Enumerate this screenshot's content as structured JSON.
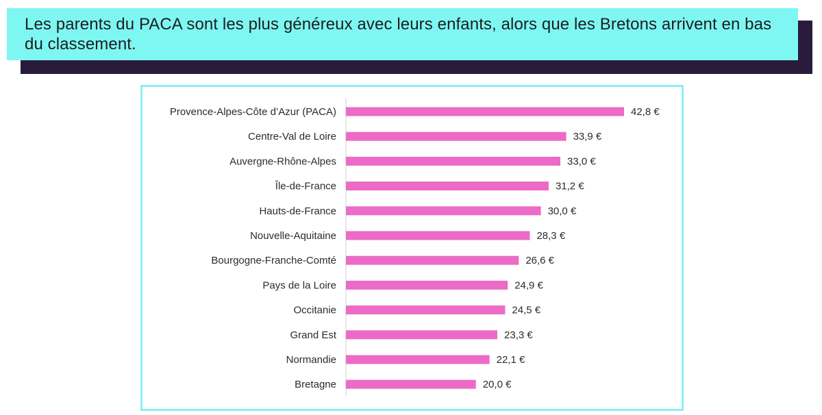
{
  "title": "Les parents du PACA sont les plus généreux avec leurs enfants, alors que les Bretons arrivent en bas du classement.",
  "colors": {
    "bar": "#ec6bc6",
    "title_bg": "#7ef7f3",
    "frame": "#8cf0f2",
    "shadow": "#2a1a3c"
  },
  "chart_data": {
    "type": "bar",
    "orientation": "horizontal",
    "categories": [
      "Provence-Alpes-Côte d’Azur (PACA)",
      "Centre-Val de Loire",
      "Auvergne-Rhône-Alpes",
      "Île-de-France",
      "Hauts-de-France",
      "Nouvelle-Aquitaine",
      "Bourgogne-Franche-Comté",
      "Pays de la Loire",
      "Occitanie",
      "Grand Est",
      "Normandie",
      "Bretagne"
    ],
    "values": [
      42.8,
      33.9,
      33.0,
      31.2,
      30.0,
      28.3,
      26.6,
      24.9,
      24.5,
      23.3,
      22.1,
      20.0
    ],
    "value_labels": [
      "42,8 €",
      "33,9 €",
      "33,0 €",
      "31,2 €",
      "30,0 €",
      "28,3 €",
      "26,6 €",
      "24,9 €",
      "24,5 €",
      "23,3 €",
      "22,1 €",
      "20,0 €"
    ],
    "xlim": [
      0,
      42.8
    ],
    "grid": false,
    "legend": "none"
  }
}
